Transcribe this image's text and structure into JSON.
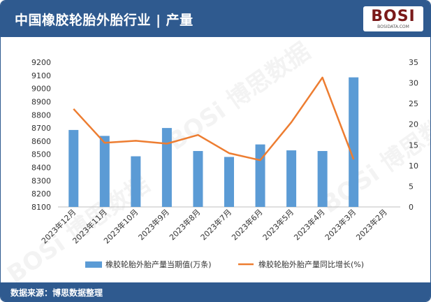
{
  "header": {
    "title": "中国橡胶轮胎外胎行业 | 产量"
  },
  "logo": {
    "text": "BOSI",
    "sub": "BOSIDATA.COM"
  },
  "footer": {
    "source": "数据来源：博思数据整理"
  },
  "watermark": {
    "text": "BOSi 博思数据"
  },
  "colors": {
    "header_bg": "#2f5a8f",
    "bar": "#5b9bd5",
    "line": "#ed7d31"
  },
  "chart_data": {
    "type": "bar+line",
    "categories": [
      "2023年12月",
      "2023年11月",
      "2023年10月",
      "2023年9月",
      "2023年8月",
      "2023年7月",
      "2023年6月",
      "2023年5月",
      "2023年4月",
      "2023年3月",
      "2023年2月"
    ],
    "series": [
      {
        "name": "橡胶轮胎外胎产量当期值(万条)",
        "type": "bar",
        "axis": "left",
        "values": [
          8685,
          8640,
          8485,
          8700,
          8525,
          8480,
          8575,
          8530,
          8525,
          9085,
          null
        ]
      },
      {
        "name": "橡胶轮胎外胎产量同比增长(%)",
        "type": "line",
        "axis": "right",
        "values": [
          23.7,
          15.5,
          16.0,
          15.3,
          17.4,
          13.0,
          11.3,
          20.5,
          31.3,
          11.5,
          null
        ]
      }
    ],
    "left_axis": {
      "min": 8100,
      "max": 9200,
      "step": 100,
      "ticks": [
        "8100",
        "8200",
        "8300",
        "8400",
        "8500",
        "8600",
        "8700",
        "8800",
        "8900",
        "9000",
        "9100",
        "9200"
      ]
    },
    "right_axis": {
      "min": 0,
      "max": 35,
      "step": 5,
      "ticks": [
        "0",
        "5",
        "10",
        "15",
        "20",
        "25",
        "30",
        "35"
      ]
    },
    "legend_position": "bottom"
  }
}
